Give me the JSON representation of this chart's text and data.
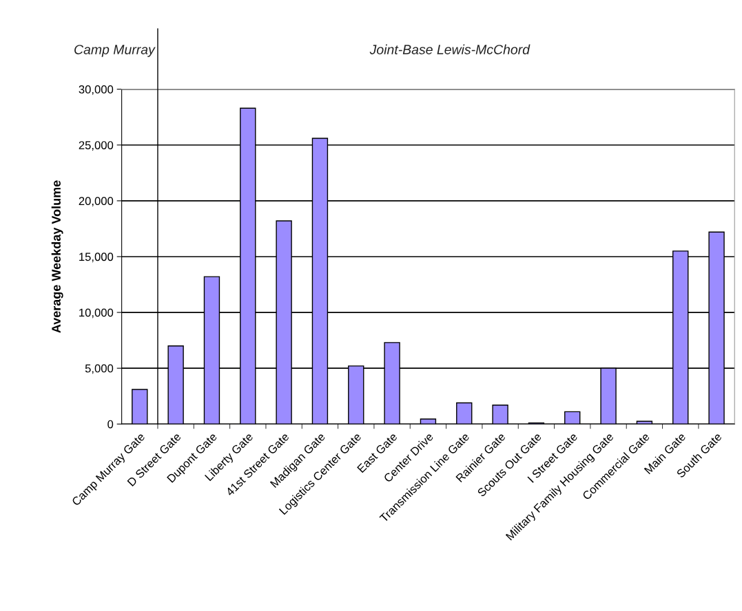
{
  "chart_data": {
    "type": "bar",
    "ylabel": "Average Weekday Volume",
    "categories": [
      "Camp Murray Gate",
      "D Street Gate",
      "Dupont Gate",
      "Liberty Gate",
      "41st Street Gate",
      "Madigan Gate",
      "Logistics Center Gate",
      "East Gate",
      "Center Drive",
      "Transmission Line Gate",
      "Rainier Gate",
      "Scouts Out Gate",
      "I Street Gate",
      "Military Family Housing Gate",
      "Commercial Gate",
      "Main Gate",
      "South Gate"
    ],
    "values": [
      3100,
      7000,
      13200,
      28300,
      18200,
      25600,
      5200,
      7300,
      450,
      1900,
      1700,
      100,
      1100,
      5000,
      250,
      15500,
      17200
    ],
    "color": "#9b8cff",
    "ylim": [
      0,
      30000
    ],
    "yticks": [
      {
        "value": 0,
        "label": "0"
      },
      {
        "value": 5000,
        "label": "5,000"
      },
      {
        "value": 10000,
        "label": "10,000"
      },
      {
        "value": 15000,
        "label": "15,000"
      },
      {
        "value": 20000,
        "label": "20,000"
      },
      {
        "value": 25000,
        "label": "25,000"
      },
      {
        "value": 30000,
        "label": "30,000"
      }
    ],
    "grid": "y",
    "legend": false,
    "annotations": [
      "Camp Murray",
      "Joint-Base Lewis-McChord"
    ]
  }
}
